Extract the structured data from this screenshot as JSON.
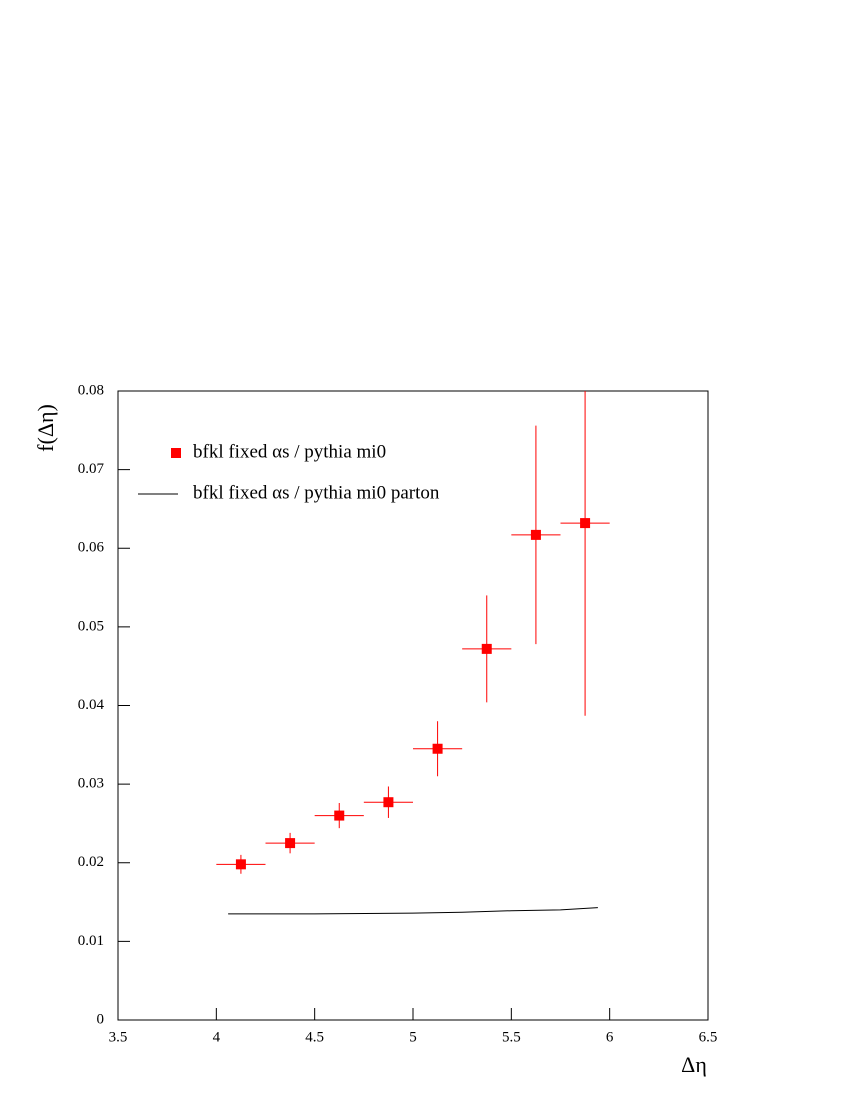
{
  "chart_data": {
    "type": "scatter",
    "xlabel": "Δη",
    "ylabel": "f(Δη)",
    "xlim": [
      3.5,
      6.5
    ],
    "ylim": [
      0,
      0.08
    ],
    "xticks": [
      3.5,
      4,
      4.5,
      5,
      5.5,
      6,
      6.5
    ],
    "yticks": [
      0,
      0.01,
      0.02,
      0.03,
      0.04,
      0.05,
      0.06,
      0.07,
      0.08
    ],
    "series": [
      {
        "name": "bfkl fixed αs / pythia mi0",
        "kind": "points",
        "color": "#ff0000",
        "x": [
          4.125,
          4.375,
          4.625,
          4.875,
          5.125,
          5.375,
          5.625,
          5.875
        ],
        "values": [
          0.0198,
          0.0225,
          0.026,
          0.0277,
          0.0345,
          0.0472,
          0.0617,
          0.0632
        ],
        "errors": [
          0.0012,
          0.0013,
          0.0016,
          0.002,
          0.0035,
          0.0068,
          0.0139,
          0.0245
        ],
        "xerr": 0.125
      },
      {
        "name": "bfkl fixed αs / pythia mi0 parton",
        "kind": "line",
        "color": "#000000",
        "x": [
          4.06,
          4.5,
          5.0,
          5.25,
          5.5,
          5.75,
          5.94
        ],
        "values": [
          0.0135,
          0.0135,
          0.0136,
          0.0137,
          0.0139,
          0.014,
          0.0143
        ]
      }
    ]
  }
}
